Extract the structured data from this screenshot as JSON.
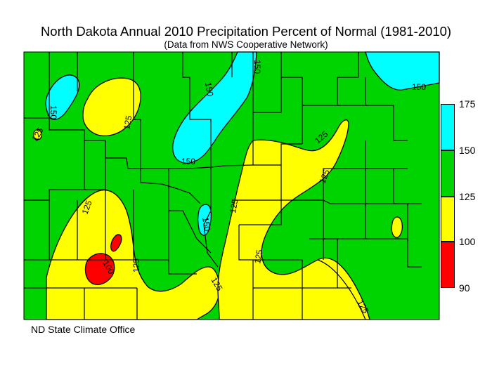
{
  "title": "North Dakota Annual 2010 Precipitation Percent of Normal (1981-2010)",
  "subtitle": "(Data from NWS Cooperative Network)",
  "credit": "ND State Climate Office",
  "colors": {
    "range_90_100": "#ff0000",
    "range_100_125": "#ffff00",
    "range_125_150": "#00d400",
    "range_150_175": "#00ffff"
  },
  "legend": {
    "bands": [
      {
        "from": 150,
        "to": 175,
        "color": "#00ffff"
      },
      {
        "from": 125,
        "to": 150,
        "color": "#00d400"
      },
      {
        "from": 100,
        "to": 125,
        "color": "#ffff00"
      },
      {
        "from": 90,
        "to": 100,
        "color": "#ff0000"
      }
    ],
    "ticks": [
      "175",
      "150",
      "125",
      "100",
      "90"
    ]
  },
  "contour_labels": [
    "150",
    "150",
    "150",
    "150",
    "125",
    "150",
    "125",
    "125",
    "125",
    "125",
    "150",
    "125",
    "100",
    "125",
    "125",
    "125",
    "125"
  ]
}
